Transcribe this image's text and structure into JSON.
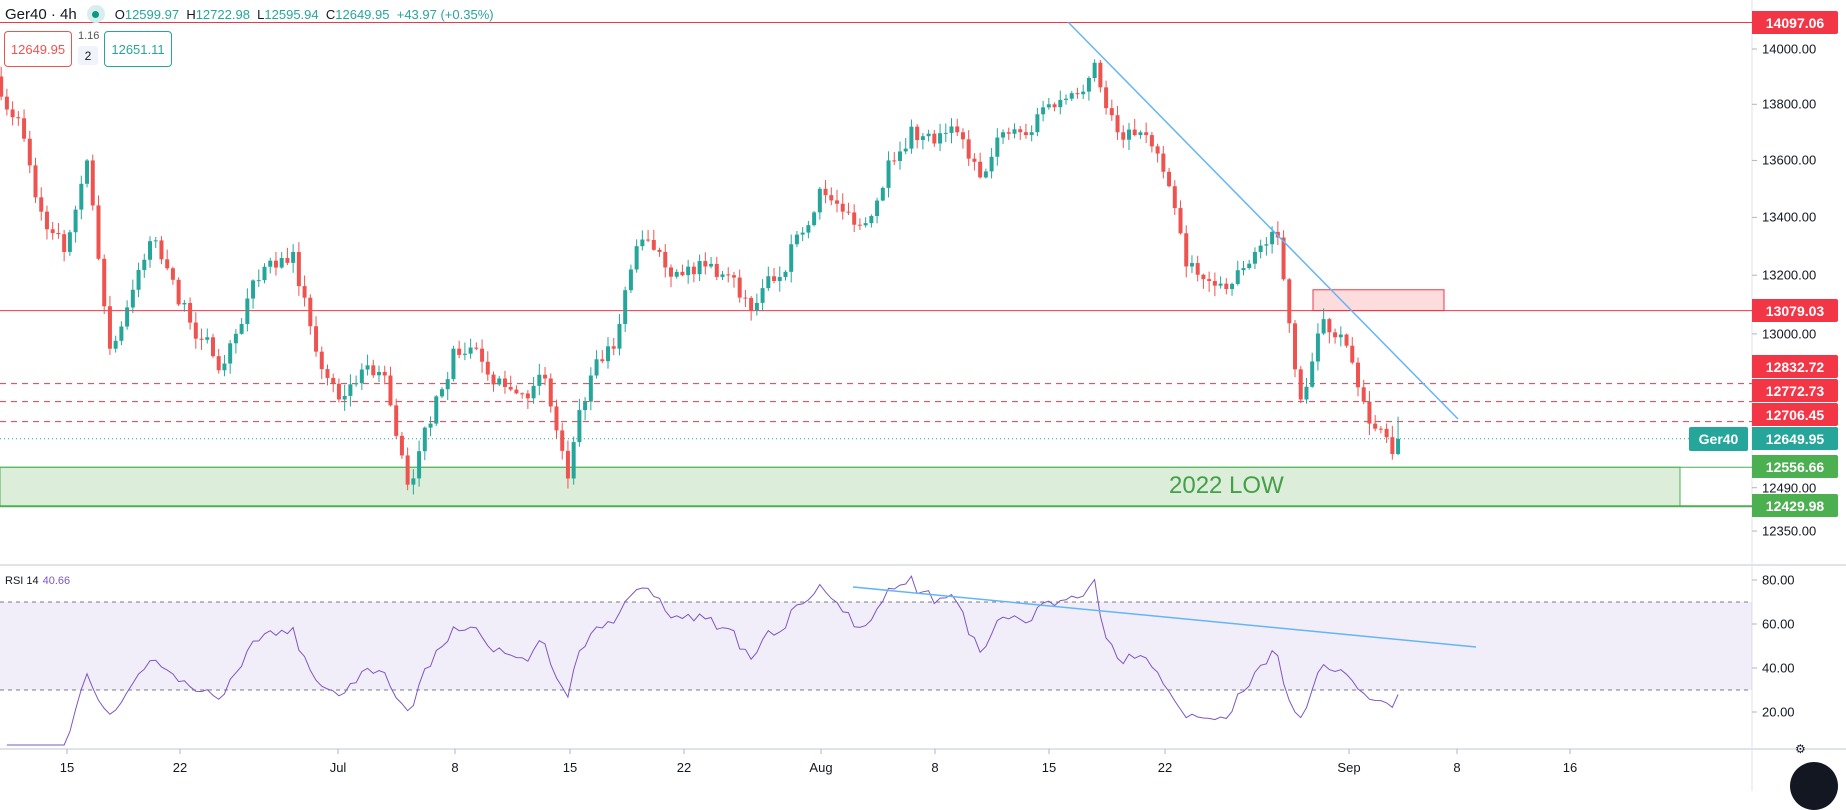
{
  "header": {
    "symbol": "Ger40 · 4h",
    "open_label": "O",
    "open": "12599.97",
    "high_label": "H",
    "high": "12722.98",
    "low_label": "L",
    "low": "12595.94",
    "close_label": "C",
    "close": "12649.95",
    "change": "+43.97 (+0.35%)"
  },
  "trade": {
    "sell_price": "12649.95",
    "spread": "1.16",
    "quantity": "2",
    "buy_price": "12651.11"
  },
  "price_axis": {
    "scale": "log",
    "ticks": [
      "14000.00",
      "13800.00",
      "13600.00",
      "13400.00",
      "13200.00",
      "13000.00",
      "12490.00",
      "12350.00"
    ],
    "tick_values": [
      14000,
      13800,
      13600,
      13400,
      13200,
      13000,
      12490,
      12350
    ]
  },
  "levels": [
    {
      "value": 14097.06,
      "label": "14097.06",
      "style": "solid",
      "color": "#f23645"
    },
    {
      "value": 13079.03,
      "label": "13079.03",
      "style": "solid",
      "color": "#f23645"
    },
    {
      "value": 12832.72,
      "label": "12832.72",
      "style": "dashed",
      "color": "#f23645"
    },
    {
      "value": 12772.73,
      "label": "12772.73",
      "style": "dashed",
      "color": "#f23645"
    },
    {
      "value": 12706.45,
      "label": "12706.45",
      "style": "dashed",
      "color": "#f23645"
    },
    {
      "value": 12556.66,
      "label": "12556.66",
      "style": "solid",
      "color": "#4caf50"
    },
    {
      "value": 12429.98,
      "label": "12429.98",
      "style": "solid",
      "color": "#4caf50"
    }
  ],
  "last_price": {
    "symbol": "Ger40",
    "value": 12649.95,
    "label": "12649.95"
  },
  "zone": {
    "label": "2022 LOW",
    "top": 12556.66,
    "bottom": 12429.98,
    "fill": "#dcedda"
  },
  "supply_box": {
    "top": 13150,
    "bottom": 13079.03
  },
  "time_axis": {
    "labels": [
      "15",
      "22",
      "Jul",
      "8",
      "15",
      "22",
      "Aug",
      "8",
      "15",
      "22",
      "Sep",
      "8",
      "16"
    ]
  },
  "rsi": {
    "title": "RSI 14",
    "value": "40.66",
    "upper": 70,
    "lower": 30,
    "ticks": [
      "80.00",
      "60.00",
      "40.00",
      "20.00"
    ],
    "tick_values": [
      80,
      60,
      40,
      20
    ]
  },
  "colors": {
    "up": "#26a69a",
    "down": "#ef5350",
    "rsi": "#7e57c2",
    "trendline": "#64b5f6"
  },
  "chart_data": {
    "type": "candlestick",
    "interval": "4h",
    "yscale": "log",
    "ylim": [
      12300,
      14150
    ],
    "daily_close_approx": [
      {
        "date": "Jun 10",
        "close": 13750
      },
      {
        "date": "Jun 13",
        "close": 13420
      },
      {
        "date": "Jun 14",
        "close": 13280
      },
      {
        "date": "Jun 15",
        "close": 13600
      },
      {
        "date": "Jun 16",
        "close": 12950
      },
      {
        "date": "Jun 17",
        "close": 13150
      },
      {
        "date": "Jun 20",
        "close": 13320
      },
      {
        "date": "Jun 21",
        "close": 13100
      },
      {
        "date": "Jun 22",
        "close": 12980
      },
      {
        "date": "Jun 23",
        "close": 12900
      },
      {
        "date": "Jun 24",
        "close": 13120
      },
      {
        "date": "Jun 27",
        "close": 13250
      },
      {
        "date": "Jun 28",
        "close": 13280
      },
      {
        "date": "Jun 29",
        "close": 12940
      },
      {
        "date": "Jun 30",
        "close": 12780
      },
      {
        "date": "Jul 1",
        "close": 12880
      },
      {
        "date": "Jul 4",
        "close": 12860
      },
      {
        "date": "Jul 5",
        "close": 12500
      },
      {
        "date": "Jul 6",
        "close": 12700
      },
      {
        "date": "Jul 7",
        "close": 12950
      },
      {
        "date": "Jul 8",
        "close": 12950
      },
      {
        "date": "Jul 11",
        "close": 12850
      },
      {
        "date": "Jul 12",
        "close": 12800
      },
      {
        "date": "Jul 13",
        "close": 12850
      },
      {
        "date": "Jul 14",
        "close": 12520
      },
      {
        "date": "Jul 15",
        "close": 12860
      },
      {
        "date": "Jul 18",
        "close": 12950
      },
      {
        "date": "Jul 19",
        "close": 13300
      },
      {
        "date": "Jul 20",
        "close": 13280
      },
      {
        "date": "Jul 21",
        "close": 13200
      },
      {
        "date": "Jul 22",
        "close": 13230
      },
      {
        "date": "Jul 25",
        "close": 13200
      },
      {
        "date": "Jul 26",
        "close": 13080
      },
      {
        "date": "Jul 27",
        "close": 13180
      },
      {
        "date": "Jul 28",
        "close": 13340
      },
      {
        "date": "Jul 29",
        "close": 13500
      },
      {
        "date": "Aug 1",
        "close": 13420
      },
      {
        "date": "Aug 2",
        "close": 13380
      },
      {
        "date": "Aug 3",
        "close": 13600
      },
      {
        "date": "Aug 4",
        "close": 13720
      },
      {
        "date": "Aug 5",
        "close": 13660
      },
      {
        "date": "Aug 8",
        "close": 13700
      },
      {
        "date": "Aug 9",
        "close": 13540
      },
      {
        "date": "Aug 10",
        "close": 13700
      },
      {
        "date": "Aug 11",
        "close": 13690
      },
      {
        "date": "Aug 12",
        "close": 13800
      },
      {
        "date": "Aug 15",
        "close": 13840
      },
      {
        "date": "Aug 16",
        "close": 13950
      },
      {
        "date": "Aug 17",
        "close": 13700
      },
      {
        "date": "Aug 18",
        "close": 13700
      },
      {
        "date": "Aug 19",
        "close": 13560
      },
      {
        "date": "Aug 22",
        "close": 13230
      },
      {
        "date": "Aug 23",
        "close": 13180
      },
      {
        "date": "Aug 24",
        "close": 13170
      },
      {
        "date": "Aug 25",
        "close": 13280
      },
      {
        "date": "Aug 26",
        "close": 13330
      },
      {
        "date": "Aug 29",
        "close": 12780
      },
      {
        "date": "Aug 30",
        "close": 13050
      },
      {
        "date": "Aug 31",
        "close": 12960
      },
      {
        "date": "Sep 1",
        "close": 12700
      },
      {
        "date": "Sep 2",
        "close": 12600
      },
      {
        "date": "Sep 5",
        "close": 12649.95
      }
    ],
    "last_bar": {
      "open": 12599.97,
      "high": 12722.98,
      "low": 12595.94,
      "close": 12649.95
    }
  }
}
